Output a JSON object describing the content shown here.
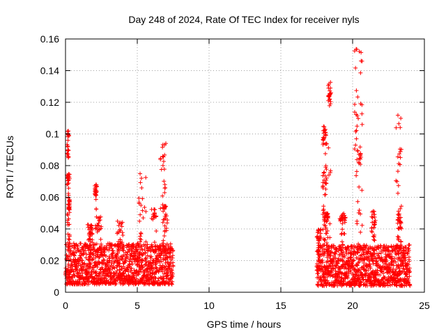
{
  "chart_data": {
    "type": "scatter",
    "title": "Day 248 of 2024, Rate Of TEC Index for receiver nyls",
    "xlabel": "GPS time / hours",
    "ylabel": "ROTI / TECUs",
    "xlim": [
      0,
      25
    ],
    "ylim": [
      0,
      0.16
    ],
    "x_ticks": [
      "0",
      "5",
      "10",
      "15",
      "20",
      "25"
    ],
    "y_ticks": [
      "0",
      "0.02",
      "0.04",
      "0.06",
      "0.08",
      "0.1",
      "0.12",
      "0.14",
      "0.16"
    ],
    "grid": true,
    "marker": "+",
    "color": "#ff0000",
    "segments": [
      {
        "x_range": [
          0,
          7.5
        ],
        "typical_range": [
          0.005,
          0.025
        ],
        "peaks": [
          {
            "x": [
              0.1,
              0.25
            ],
            "y": [
              0.085,
              0.103
            ]
          },
          {
            "x": [
              0.1,
              0.3
            ],
            "y": [
              0.068,
              0.075
            ]
          },
          {
            "x": [
              0.2,
              0.3
            ],
            "y": [
              0.052,
              0.06
            ]
          },
          {
            "x": [
              1.5,
              1.9
            ],
            "y": [
              0.036,
              0.043
            ]
          },
          {
            "x": [
              2.0,
              2.2
            ],
            "y": [
              0.06,
              0.068
            ]
          },
          {
            "x": [
              2.2,
              2.5
            ],
            "y": [
              0.038,
              0.05
            ]
          },
          {
            "x": [
              3.6,
              4.0
            ],
            "y": [
              0.03,
              0.045
            ]
          },
          {
            "x": [
              5.1,
              5.6
            ],
            "y": [
              0.035,
              0.075
            ]
          },
          {
            "x": [
              6.0,
              6.4
            ],
            "y": [
              0.045,
              0.055
            ]
          },
          {
            "x": [
              6.6,
              7.0
            ],
            "y": [
              0.063,
              0.094
            ]
          },
          {
            "x": [
              6.8,
              7.1
            ],
            "y": [
              0.04,
              0.055
            ]
          }
        ]
      },
      {
        "x_range": [
          17.5,
          24
        ],
        "typical_range": [
          0.004,
          0.024
        ],
        "peaks": [
          {
            "x": [
              17.5,
              17.8
            ],
            "y": [
              0.03,
              0.04
            ]
          },
          {
            "x": [
              17.9,
              18.2
            ],
            "y": [
              0.093,
              0.105
            ]
          },
          {
            "x": [
              17.9,
              18.2
            ],
            "y": [
              0.065,
              0.08
            ]
          },
          {
            "x": [
              18.0,
              18.3
            ],
            "y": [
              0.045,
              0.05
            ]
          },
          {
            "x": [
              18.3,
              18.5
            ],
            "y": [
              0.12,
              0.133
            ]
          },
          {
            "x": [
              19.1,
              19.5
            ],
            "y": [
              0.045,
              0.05
            ]
          },
          {
            "x": [
              20.1,
              20.7
            ],
            "y": [
              0.1,
              0.155
            ]
          },
          {
            "x": [
              20.3,
              20.6
            ],
            "y": [
              0.08,
              0.092
            ]
          },
          {
            "x": [
              21.3,
              21.6
            ],
            "y": [
              0.04,
              0.052
            ]
          },
          {
            "x": [
              23.0,
              23.4
            ],
            "y": [
              0.065,
              0.114
            ]
          },
          {
            "x": [
              23.1,
              23.4
            ],
            "y": [
              0.04,
              0.05
            ]
          }
        ]
      }
    ]
  }
}
